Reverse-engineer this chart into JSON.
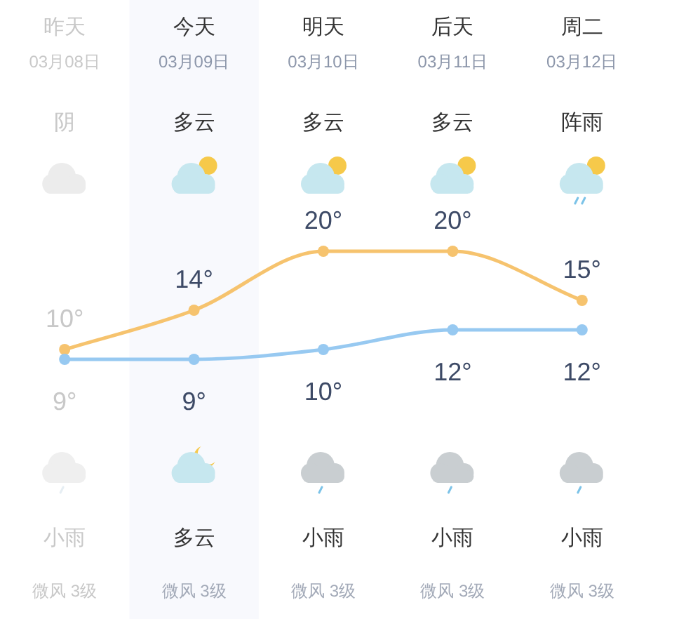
{
  "chart_data": {
    "type": "line",
    "categories": [
      "昨天",
      "今天",
      "明天",
      "后天",
      "周二"
    ],
    "series": [
      {
        "color": "#f6c36e",
        "values": [
          10,
          14,
          20,
          20,
          15
        ],
        "value_labels": [
          "10°",
          "14°",
          "20°",
          "20°",
          "15°"
        ]
      },
      {
        "color": "#97c9f1",
        "values": [
          9,
          9,
          10,
          12,
          12
        ],
        "value_labels": [
          "9°",
          "9°",
          "10°",
          "12°",
          "12°"
        ]
      }
    ],
    "marker": "circle",
    "bands": [
      {
        "axis": "x",
        "from": "今天",
        "to": "今天",
        "color": "#f8f9fd"
      }
    ],
    "annotations": [
      "03月08日",
      "03月09日",
      "03月10日",
      "03月11日",
      "03月12日",
      "阴",
      "多云",
      "多云",
      "多云",
      "阵雨",
      "小雨",
      "多云",
      "小雨",
      "小雨",
      "小雨",
      "微风 3级",
      "微风 3级",
      "微风 3级",
      "微风 3级",
      "微风 3级"
    ]
  }
}
